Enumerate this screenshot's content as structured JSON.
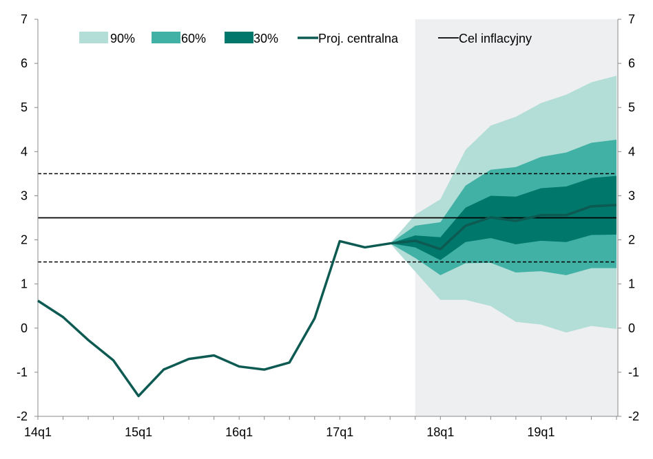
{
  "chart_data": {
    "type": "area",
    "title": "",
    "xlabel": "",
    "ylabel": "",
    "ylim": [
      -2,
      7
    ],
    "yticks": [
      -2,
      -1,
      0,
      1,
      2,
      3,
      4,
      5,
      6,
      7
    ],
    "x": [
      "14q1",
      "14q2",
      "14q3",
      "14q4",
      "15q1",
      "15q2",
      "15q3",
      "15q4",
      "16q1",
      "16q2",
      "16q3",
      "16q4",
      "17q1",
      "17q2",
      "17q3",
      "17q4",
      "18q1",
      "18q2",
      "18q3",
      "18q4",
      "19q1",
      "19q2",
      "19q3",
      "19q4"
    ],
    "xtick_labels": [
      "14q1",
      "15q1",
      "16q1",
      "17q1",
      "18q1",
      "19q1"
    ],
    "projection_shading_start": "17q4",
    "central": {
      "name": "Proj. centralna",
      "color": "#0d5a52",
      "values": [
        0.62,
        0.25,
        -0.27,
        -0.73,
        -1.54,
        -0.94,
        -0.7,
        -0.62,
        -0.87,
        -0.94,
        -0.78,
        0.22,
        1.97,
        1.83,
        1.92,
        1.98,
        1.79,
        2.32,
        2.51,
        2.43,
        2.56,
        2.56,
        2.76,
        2.79
      ]
    },
    "fan_x": [
      "17q3",
      "17q4",
      "18q1",
      "18q2",
      "18q3",
      "18q4",
      "19q1",
      "19q2",
      "19q3",
      "19q4"
    ],
    "bands": [
      {
        "name": "90%",
        "color": "#b3ddd7",
        "upper": [
          1.92,
          2.57,
          2.92,
          4.04,
          4.59,
          4.79,
          5.1,
          5.29,
          5.57,
          5.72
        ],
        "lower": [
          1.92,
          1.28,
          0.64,
          0.64,
          0.5,
          0.14,
          0.08,
          -0.1,
          0.05,
          -0.02
        ]
      },
      {
        "name": "60%",
        "color": "#41b1a5",
        "upper": [
          1.92,
          2.32,
          2.4,
          3.23,
          3.59,
          3.65,
          3.88,
          3.98,
          4.2,
          4.27
        ],
        "lower": [
          1.92,
          1.59,
          1.2,
          1.47,
          1.48,
          1.26,
          1.29,
          1.2,
          1.36,
          1.36
        ]
      },
      {
        "name": "30%",
        "color": "#00776b",
        "upper": [
          1.92,
          2.1,
          2.06,
          2.73,
          3.0,
          2.98,
          3.17,
          3.21,
          3.4,
          3.45
        ],
        "lower": [
          1.92,
          1.83,
          1.54,
          1.95,
          2.04,
          1.9,
          1.98,
          1.95,
          2.11,
          2.12
        ]
      }
    ],
    "target": {
      "name": "Cel inflacyjny",
      "value": 2.5,
      "band": [
        1.5,
        3.5
      ]
    },
    "legend": [
      "90%",
      "60%",
      "30%",
      "Proj. centralna",
      "Cel inflacyjny"
    ],
    "legend_placement": "top",
    "grid": false
  }
}
